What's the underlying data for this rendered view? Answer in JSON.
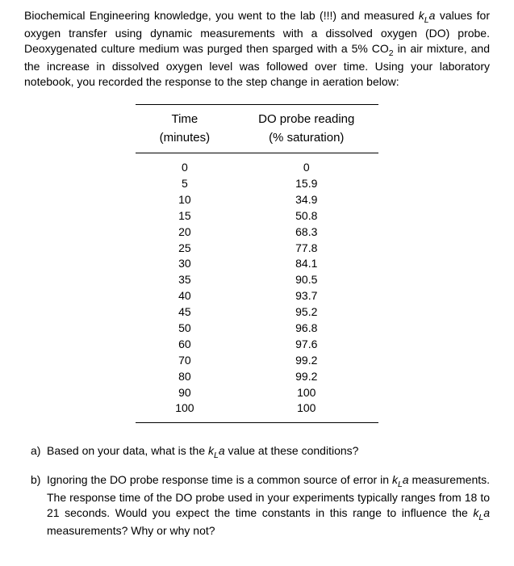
{
  "intro": {
    "line1": "Biochemical Engineering knowledge, you went to the",
    "rest": "lab (!!!) and measured kLa values for oxygen transfer using dynamic measurements with a dissolved oxygen (DO) probe. Deoxygenated culture medium was purged then sparged with a 5% CO₂ in air mixture, and the increase in dissolved oxygen level was followed over time. Using your laboratory notebook, you recorded the response to the step change in aeration below:"
  },
  "table": {
    "col1_header": "Time",
    "col1_sub": "(minutes)",
    "col2_header": "DO probe reading",
    "col2_sub": "(% saturation)",
    "rows": [
      {
        "t": "0",
        "v": "0"
      },
      {
        "t": "5",
        "v": "15.9"
      },
      {
        "t": "10",
        "v": "34.9"
      },
      {
        "t": "15",
        "v": "50.8"
      },
      {
        "t": "20",
        "v": "68.3"
      },
      {
        "t": "25",
        "v": "77.8"
      },
      {
        "t": "30",
        "v": "84.1"
      },
      {
        "t": "35",
        "v": "90.5"
      },
      {
        "t": "40",
        "v": "93.7"
      },
      {
        "t": "45",
        "v": "95.2"
      },
      {
        "t": "50",
        "v": "96.8"
      },
      {
        "t": "60",
        "v": "97.6"
      },
      {
        "t": "70",
        "v": "99.2"
      },
      {
        "t": "80",
        "v": "99.2"
      },
      {
        "t": "90",
        "v": "100"
      },
      {
        "t": "100",
        "v": "100"
      }
    ]
  },
  "questions": {
    "a": {
      "label": "a)",
      "text": "Based on your data, what is the kLa value at these conditions?"
    },
    "b": {
      "label": "b)",
      "text": "Ignoring the DO probe response time is a common source of error in kLa measurements. The response time of the DO probe used in your experiments typically ranges from 18 to 21 seconds. Would you expect the time constants in this range to influence the kLa measurements? Why or why not?"
    }
  }
}
